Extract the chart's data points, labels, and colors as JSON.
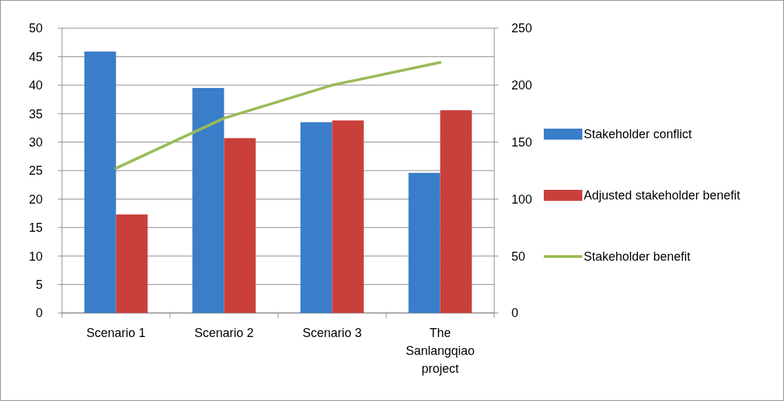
{
  "chart_data": {
    "type": "bar",
    "categories": [
      "Scenario 1",
      "Scenario 2",
      "Scenario 3",
      "The Sanlangqiao project"
    ],
    "series": [
      {
        "name": "Stakeholder conflict",
        "color": "#3a7dc9",
        "values": [
          45.9,
          39.5,
          33.5,
          24.6
        ]
      },
      {
        "name": "Adjusted stakeholder benefit",
        "color": "#c9403b",
        "values": [
          17.3,
          30.7,
          33.8,
          35.6
        ]
      },
      {
        "name": "Stakeholder benefit",
        "type": "line",
        "axis": "y2",
        "color": "#9bbb59",
        "values": [
          127,
          171,
          200,
          220
        ]
      }
    ],
    "ylim": [
      0,
      50
    ],
    "yticks": [
      0,
      5,
      10,
      15,
      20,
      25,
      30,
      35,
      40,
      45,
      50
    ],
    "y2lim": [
      0,
      250
    ],
    "y2ticks": [
      0,
      50,
      100,
      150,
      200,
      250
    ],
    "grid": "y",
    "legend": "right",
    "marker": "none",
    "line_style": "solid"
  }
}
